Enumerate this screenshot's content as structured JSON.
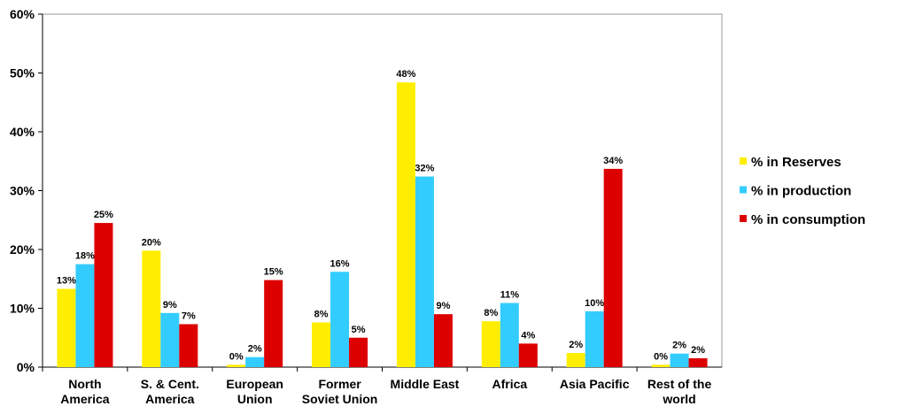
{
  "chart_data": {
    "type": "bar",
    "categories": [
      "North America",
      "S. & Cent. America",
      "European Union",
      "Former Soviet Union",
      "Middle East",
      "Africa",
      "Asia Pacific",
      "Rest of the world"
    ],
    "series": [
      {
        "name": "% in Reserves",
        "color": "#ffee00",
        "values": [
          13.3,
          19.8,
          0.4,
          7.6,
          48.4,
          7.8,
          2.4,
          0.4
        ],
        "value_labels": [
          "13%",
          "20%",
          "0%",
          "8%",
          "48%",
          "8%",
          "2%",
          "0%"
        ]
      },
      {
        "name": "% in production",
        "color": "#33ccff",
        "values": [
          17.5,
          9.2,
          1.7,
          16.2,
          32.4,
          10.9,
          9.5,
          2.3
        ],
        "value_labels": [
          "18%",
          "9%",
          "2%",
          "16%",
          "32%",
          "11%",
          "10%",
          "2%"
        ]
      },
      {
        "name": "% in consumption",
        "color": "#dd0000",
        "values": [
          24.5,
          7.3,
          14.8,
          5,
          9,
          4,
          33.7,
          1.5
        ],
        "value_labels": [
          "25%",
          "7%",
          "15%",
          "5%",
          "9%",
          "4%",
          "34%",
          "2%"
        ]
      }
    ],
    "ylim": [
      0,
      60
    ],
    "yticks": [
      {
        "value": 0,
        "label": "0%"
      },
      {
        "value": 10,
        "label": "10%"
      },
      {
        "value": 20,
        "label": "20%"
      },
      {
        "value": 30,
        "label": "30%"
      },
      {
        "value": 40,
        "label": "40%"
      },
      {
        "value": 50,
        "label": "50%"
      },
      {
        "value": 60,
        "label": "60%"
      }
    ],
    "legend": "right"
  }
}
